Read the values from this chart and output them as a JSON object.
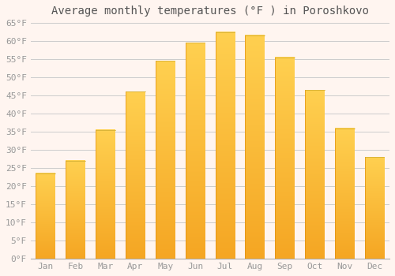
{
  "title": "Average monthly temperatures (°F ) in Poroshkovo",
  "months": [
    "Jan",
    "Feb",
    "Mar",
    "Apr",
    "May",
    "Jun",
    "Jul",
    "Aug",
    "Sep",
    "Oct",
    "Nov",
    "Dec"
  ],
  "values": [
    23.5,
    27.0,
    35.5,
    46.0,
    54.5,
    59.5,
    62.5,
    61.5,
    55.5,
    46.5,
    36.0,
    28.0
  ],
  "bar_color_bottom": "#F5A623",
  "bar_color_top": "#FFD050",
  "ylim": [
    0,
    65
  ],
  "yticks": [
    0,
    5,
    10,
    15,
    20,
    25,
    30,
    35,
    40,
    45,
    50,
    55,
    60,
    65
  ],
  "background_color": "#FFF5F0",
  "plot_bg_color": "#FFF5F0",
  "grid_color": "#CCCCCC",
  "title_fontsize": 10,
  "tick_fontsize": 8,
  "tick_color": "#999999",
  "title_color": "#555555"
}
